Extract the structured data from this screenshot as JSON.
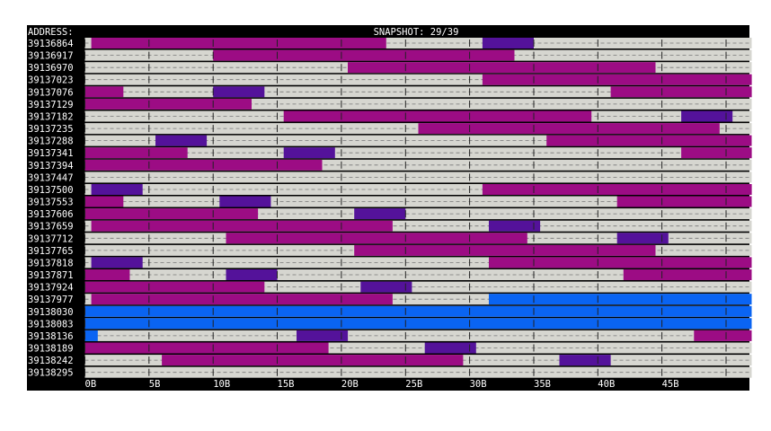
{
  "header": {
    "address_label": "ADDRESS:",
    "snapshot_label": "SNAPSHOT: 29/39"
  },
  "colors": {
    "background": "#000000",
    "free": "#d6d6d0",
    "magenta": "#9c0c84",
    "purple": "#54129a",
    "blue": "#0a64f2",
    "text": "#ffffff"
  },
  "chart_data": {
    "type": "heatmap",
    "x_unit": "B",
    "x_range": [
      0,
      52
    ],
    "x_ticks": [
      "0B",
      "5B",
      "10B",
      "15B",
      "20B",
      "25B",
      "30B",
      "35B",
      "40B",
      "45B"
    ],
    "rows": [
      {
        "address": "39136864",
        "segments": [
          {
            "start": 0.5,
            "end": 23.5,
            "color": "magenta"
          },
          {
            "start": 31,
            "end": 35,
            "color": "purple"
          }
        ]
      },
      {
        "address": "39136917",
        "segments": [
          {
            "start": 10,
            "end": 33.5,
            "color": "magenta"
          }
        ]
      },
      {
        "address": "39136970",
        "segments": [
          {
            "start": 20.5,
            "end": 44.5,
            "color": "magenta"
          }
        ]
      },
      {
        "address": "39137023",
        "segments": [
          {
            "start": 31,
            "end": 52,
            "color": "magenta"
          }
        ]
      },
      {
        "address": "39137076",
        "segments": [
          {
            "start": 0,
            "end": 3,
            "color": "magenta"
          },
          {
            "start": 10,
            "end": 14,
            "color": "purple"
          },
          {
            "start": 41,
            "end": 52,
            "color": "magenta"
          }
        ]
      },
      {
        "address": "39137129",
        "segments": [
          {
            "start": 0,
            "end": 13,
            "color": "magenta"
          }
        ]
      },
      {
        "address": "39137182",
        "segments": [
          {
            "start": 15.5,
            "end": 39.5,
            "color": "magenta"
          },
          {
            "start": 46.5,
            "end": 50.5,
            "color": "purple"
          }
        ]
      },
      {
        "address": "39137235",
        "segments": [
          {
            "start": 26,
            "end": 49.5,
            "color": "magenta"
          }
        ]
      },
      {
        "address": "39137288",
        "segments": [
          {
            "start": 5.5,
            "end": 9.5,
            "color": "purple"
          },
          {
            "start": 36,
            "end": 52,
            "color": "magenta"
          }
        ]
      },
      {
        "address": "39137341",
        "segments": [
          {
            "start": 0,
            "end": 8,
            "color": "magenta"
          },
          {
            "start": 15.5,
            "end": 19.5,
            "color": "purple"
          },
          {
            "start": 46.5,
            "end": 52,
            "color": "magenta"
          }
        ]
      },
      {
        "address": "39137394",
        "segments": [
          {
            "start": 0,
            "end": 18.5,
            "color": "magenta"
          }
        ]
      },
      {
        "address": "39137447",
        "segments": []
      },
      {
        "address": "39137500",
        "segments": [
          {
            "start": 0.5,
            "end": 4.5,
            "color": "purple"
          },
          {
            "start": 31,
            "end": 52,
            "color": "magenta"
          }
        ]
      },
      {
        "address": "39137553",
        "segments": [
          {
            "start": 0,
            "end": 3,
            "color": "magenta"
          },
          {
            "start": 10.5,
            "end": 14.5,
            "color": "purple"
          },
          {
            "start": 41.5,
            "end": 52,
            "color": "magenta"
          }
        ]
      },
      {
        "address": "39137606",
        "segments": [
          {
            "start": 0,
            "end": 13.5,
            "color": "magenta"
          },
          {
            "start": 21,
            "end": 25,
            "color": "purple"
          }
        ]
      },
      {
        "address": "39137659",
        "segments": [
          {
            "start": 0.5,
            "end": 24,
            "color": "magenta"
          },
          {
            "start": 31.5,
            "end": 35.5,
            "color": "purple"
          }
        ]
      },
      {
        "address": "39137712",
        "segments": [
          {
            "start": 11,
            "end": 34.5,
            "color": "magenta"
          },
          {
            "start": 41.5,
            "end": 45.5,
            "color": "purple"
          }
        ]
      },
      {
        "address": "39137765",
        "segments": [
          {
            "start": 21,
            "end": 44.5,
            "color": "magenta"
          }
        ]
      },
      {
        "address": "39137818",
        "segments": [
          {
            "start": 0.5,
            "end": 4.5,
            "color": "purple"
          },
          {
            "start": 31.5,
            "end": 52,
            "color": "magenta"
          }
        ]
      },
      {
        "address": "39137871",
        "segments": [
          {
            "start": 0,
            "end": 3.5,
            "color": "magenta"
          },
          {
            "start": 11,
            "end": 15,
            "color": "purple"
          },
          {
            "start": 42,
            "end": 52,
            "color": "magenta"
          }
        ]
      },
      {
        "address": "39137924",
        "segments": [
          {
            "start": 0,
            "end": 14,
            "color": "magenta"
          },
          {
            "start": 21.5,
            "end": 25.5,
            "color": "purple"
          }
        ]
      },
      {
        "address": "39137977",
        "segments": [
          {
            "start": 0.5,
            "end": 24,
            "color": "magenta"
          },
          {
            "start": 31.5,
            "end": 52,
            "color": "blue"
          }
        ]
      },
      {
        "address": "39138030",
        "segments": [
          {
            "start": 0,
            "end": 52,
            "color": "blue"
          }
        ]
      },
      {
        "address": "39138083",
        "segments": [
          {
            "start": 0,
            "end": 52,
            "color": "blue"
          }
        ]
      },
      {
        "address": "39138136",
        "segments": [
          {
            "start": 0,
            "end": 1,
            "color": "blue"
          },
          {
            "start": 16.5,
            "end": 20.5,
            "color": "purple"
          },
          {
            "start": 47.5,
            "end": 52,
            "color": "magenta"
          }
        ]
      },
      {
        "address": "39138189",
        "segments": [
          {
            "start": 0,
            "end": 19,
            "color": "magenta"
          },
          {
            "start": 26.5,
            "end": 30.5,
            "color": "purple"
          }
        ]
      },
      {
        "address": "39138242",
        "segments": [
          {
            "start": 6,
            "end": 29.5,
            "color": "magenta"
          },
          {
            "start": 37,
            "end": 41,
            "color": "purple"
          }
        ]
      },
      {
        "address": "39138295",
        "segments": []
      }
    ]
  }
}
